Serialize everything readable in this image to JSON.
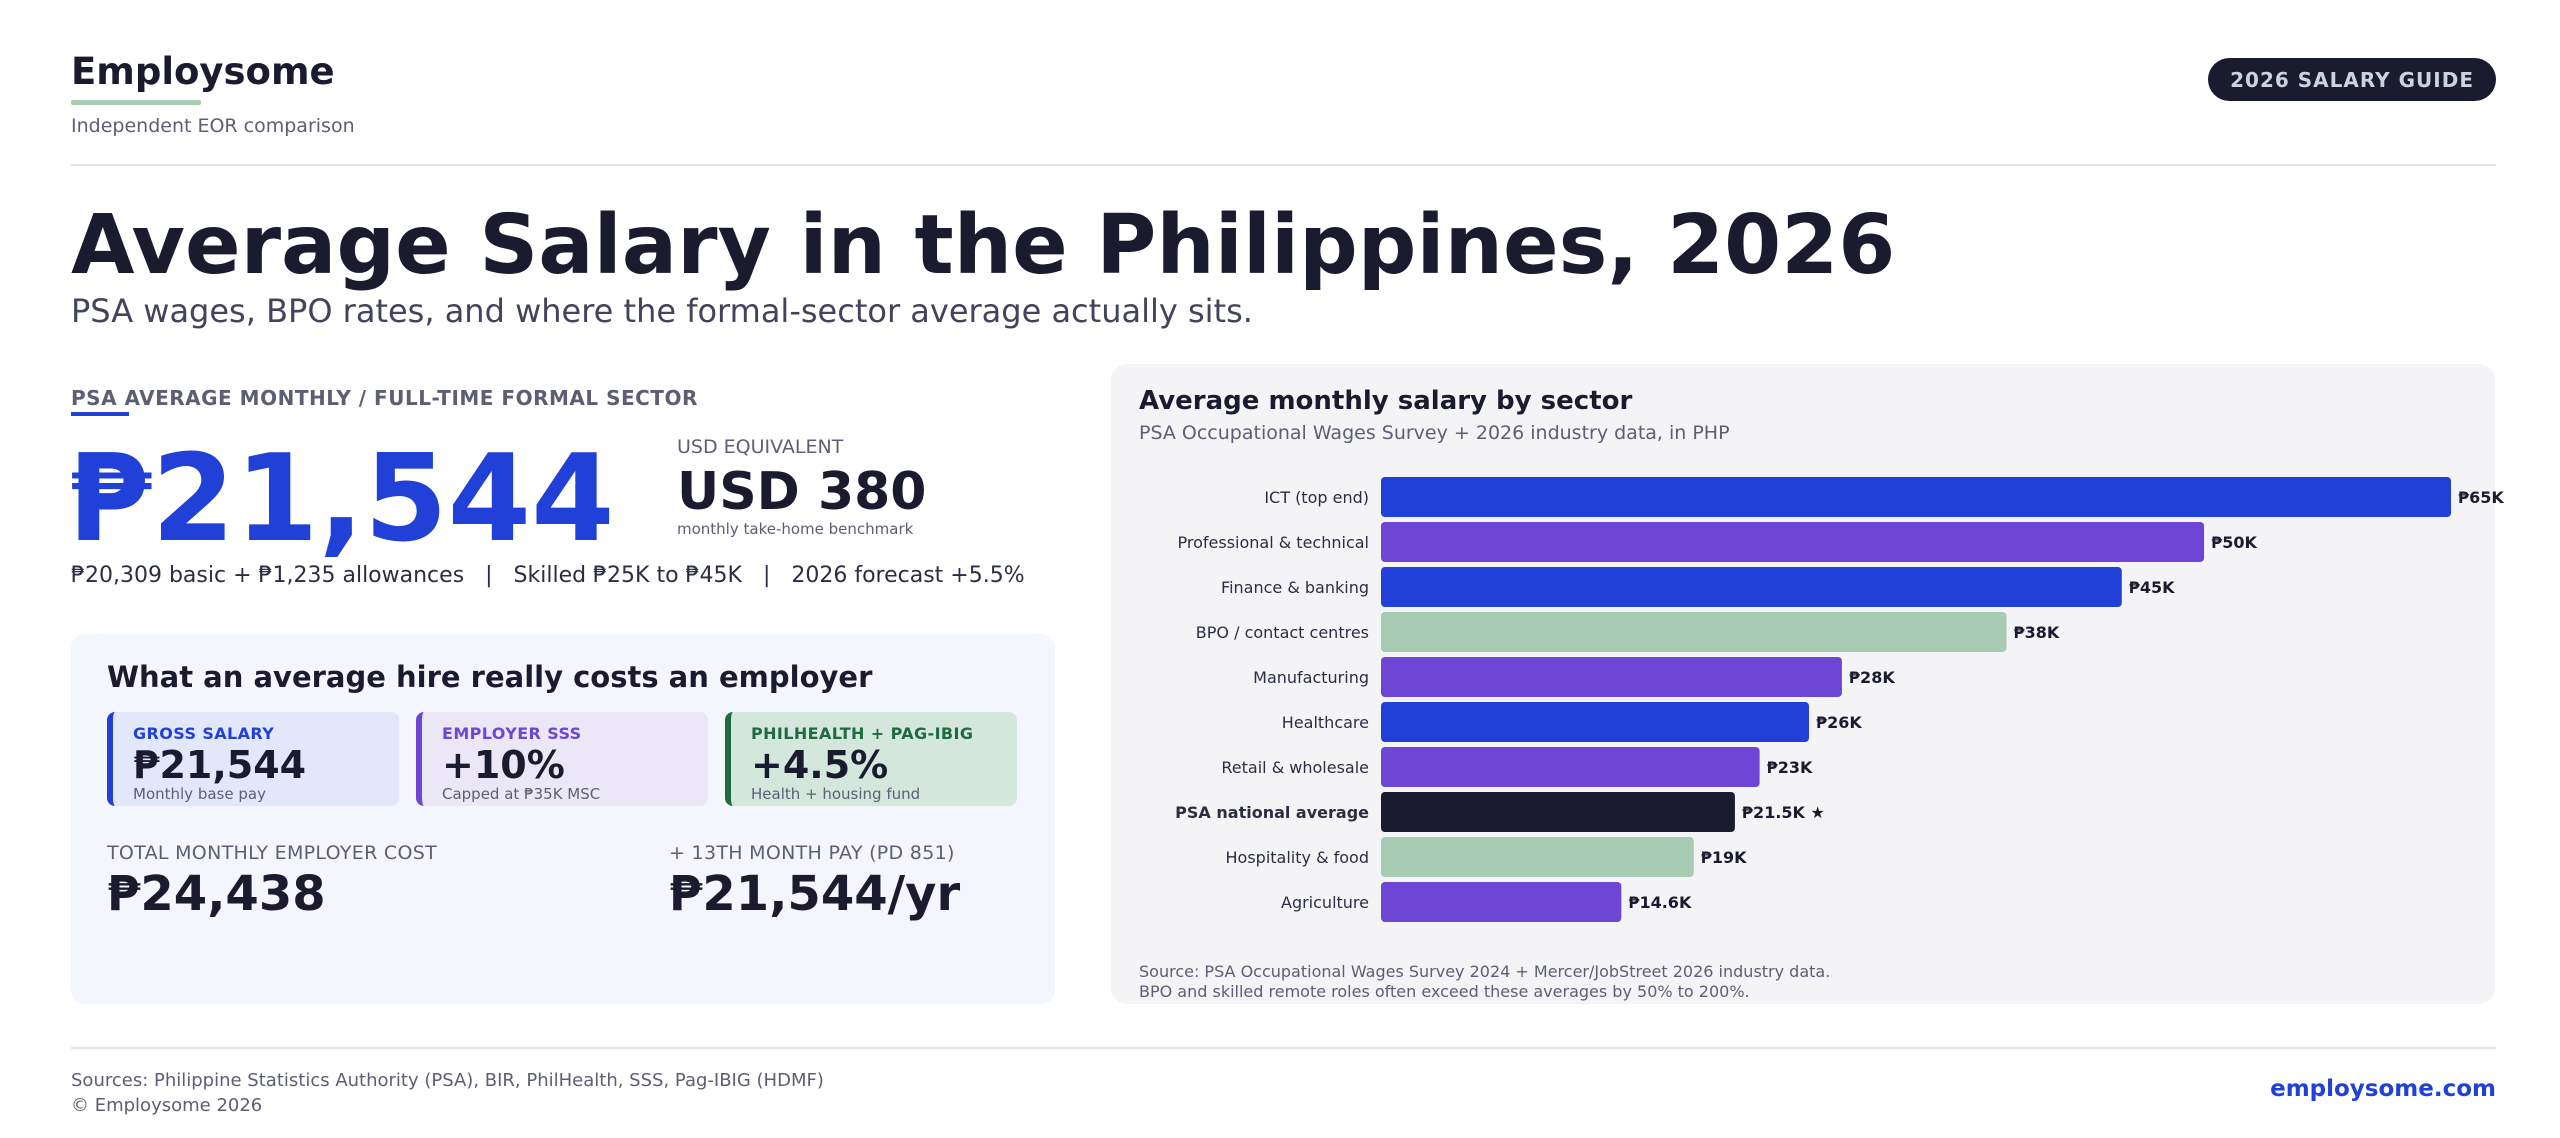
{
  "brand": {
    "name": "Employsome",
    "tagline": "Independent EOR comparison",
    "badge": "2026 SALARY GUIDE"
  },
  "headline": {
    "title": "Average Salary in the Philippines, 2026",
    "subtitle": "PSA wages, BPO rates, and where the formal-sector average actually sits."
  },
  "summary": {
    "kicker": "PSA AVERAGE MONTHLY  /  FULL-TIME FORMAL SECTOR",
    "amount": "₱21,544",
    "usd_label": "USD EQUIVALENT",
    "usd_value": "USD 380",
    "usd_note": "monthly take-home benchmark",
    "breakdown": "₱20,309 basic + ₱1,235 allowances   |   Skilled ₱25K to ₱45K   |   2026 forecast +5.5%"
  },
  "employer_cost": {
    "title": "What an average hire really costs an employer",
    "items": [
      {
        "label": "GROSS SALARY",
        "value": "₱21,544",
        "note": "Monthly base pay"
      },
      {
        "label": "EMPLOYER SSS",
        "value": "+10%",
        "note": "Capped at ₱35K MSC"
      },
      {
        "label": "PHILHEALTH + PAG-IBIG",
        "value": "+4.5%",
        "note": "Health + housing fund"
      }
    ],
    "total_label": "TOTAL MONTHLY EMPLOYER COST",
    "total_value": "₱24,438",
    "thirteenth_label": "+ 13TH MONTH PAY (PD 851)",
    "thirteenth_value": "₱21,544/yr"
  },
  "chart_data": {
    "type": "bar",
    "orientation": "horizontal",
    "title": "Average monthly salary by sector",
    "subtitle": "PSA Occupational Wages Survey + 2026 industry data, in PHP",
    "categories": [
      "ICT (top end)",
      "Professional & technical",
      "Finance & banking",
      "BPO / contact centres",
      "Manufacturing",
      "Healthcare",
      "Retail & wholesale",
      "PSA national average",
      "Hospitality & food",
      "Agriculture"
    ],
    "values": [
      65000,
      50000,
      45000,
      38000,
      28000,
      26000,
      23000,
      21500,
      19000,
      14600
    ],
    "data_labels": [
      "₱65K",
      "₱50K",
      "₱45K",
      "₱38K",
      "₱28K",
      "₱26K",
      "₱23K",
      "₱21.5K ★",
      "₱19K",
      "₱14.6K"
    ],
    "colors": [
      "#2140d8",
      "#6d46d6",
      "#2140d8",
      "#a8cbb3",
      "#6d46d6",
      "#2140d8",
      "#6d46d6",
      "#1b1b2f",
      "#a8cbb3",
      "#6d46d6"
    ],
    "highlight": "PSA national average",
    "xlim": [
      0,
      65000
    ],
    "grid": false,
    "source_line1": "Source: PSA Occupational Wages Survey 2024 + Mercer/JobStreet 2026 industry data.",
    "source_line2": "BPO and skilled remote roles often exceed these averages by 50% to 200%."
  },
  "footer": {
    "sources": "Sources: Philippine Statistics Authority (PSA), BIR, PhilHealth, SSS, Pag-IBIG (HDMF)",
    "copyright": "© Employsome 2026",
    "link": "employsome.com"
  }
}
